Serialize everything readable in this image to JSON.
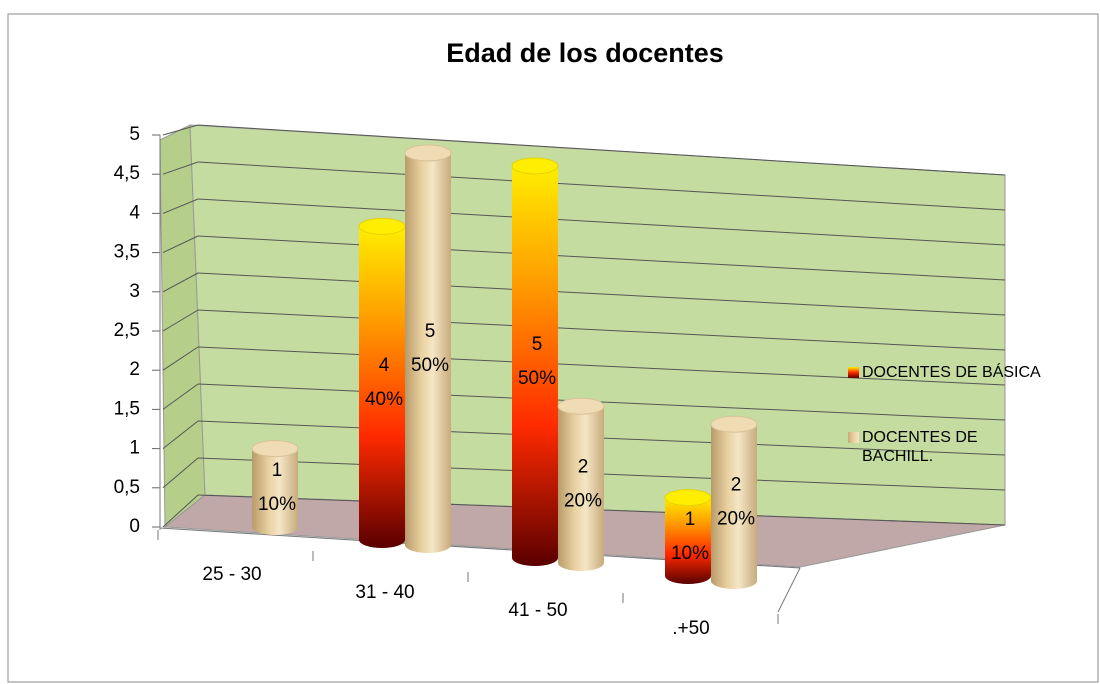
{
  "chart_data": {
    "type": "bar3d",
    "title": "Edad de los docentes",
    "categories": [
      "25 - 30",
      "31 - 40",
      "41 - 50",
      ".+50"
    ],
    "series": [
      {
        "name": "DOCENTES DE BÁSICA",
        "color": "#ff2a00",
        "values": [
          null,
          4,
          5,
          1
        ],
        "percent_labels": [
          null,
          "40%",
          "50%",
          "10%"
        ]
      },
      {
        "name": "DOCENTES DE BACHILL.",
        "color": "#e8cfa0",
        "values": [
          1,
          5,
          2,
          2
        ],
        "percent_labels": [
          "10%",
          "50%",
          "20%",
          "20%"
        ]
      }
    ],
    "ylim": [
      0,
      5
    ],
    "yticks": [
      0,
      {
        "value": 0.5,
        "label": "0,5"
      },
      1,
      {
        "value": 1.5,
        "label": "1,5"
      },
      2,
      {
        "value": 2.5,
        "label": "2,5"
      },
      3,
      {
        "value": 3.5,
        "label": "3,5"
      },
      4,
      {
        "value": 4.5,
        "label": "4,5"
      },
      5
    ],
    "grid": true,
    "legend": "right"
  }
}
